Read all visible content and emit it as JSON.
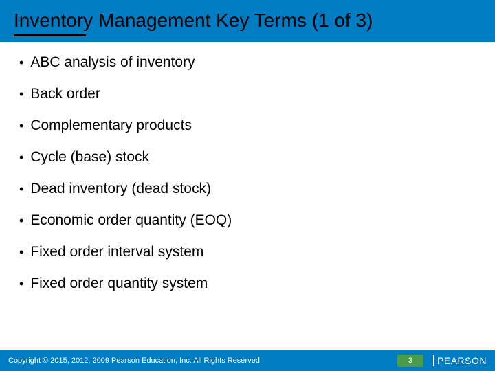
{
  "title": "Inventory Management Key Terms (1 of 3)",
  "bullets": [
    "ABC analysis of inventory",
    "Back order",
    "Complementary products",
    "Cycle (base) stock",
    "Dead inventory (dead stock)",
    "Economic order quantity (EOQ)",
    "Fixed order interval system",
    "Fixed order quantity system"
  ],
  "copyright": "Copyright © 2015, 2012, 2009 Pearson Education, Inc. All Rights Reserved",
  "page_number": "3",
  "logo_text": "PEARSON",
  "colors": {
    "header_bg": "#007cc3",
    "footer_bg": "#007cc3",
    "page_badge_bg": "#4a9b4a",
    "text": "#000000",
    "footer_text": "#ffffff"
  }
}
